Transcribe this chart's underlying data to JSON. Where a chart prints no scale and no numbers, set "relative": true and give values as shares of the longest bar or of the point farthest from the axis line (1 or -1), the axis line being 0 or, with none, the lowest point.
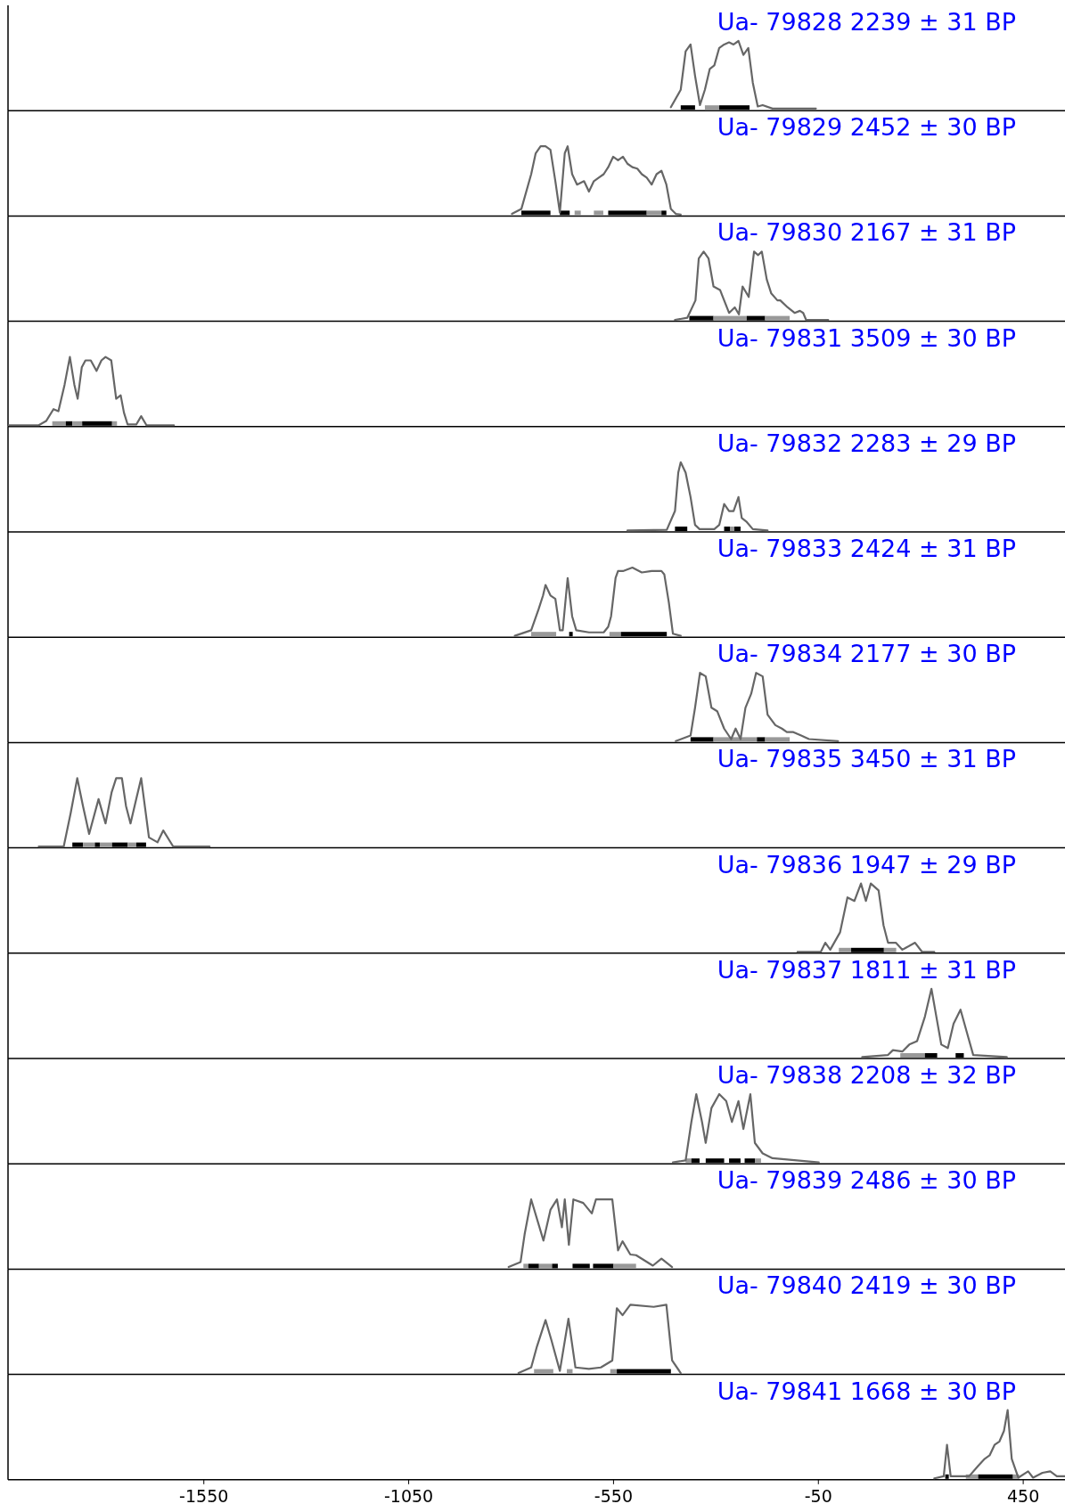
{
  "chart_data": [
    {
      "type": "line",
      "title": "Ua- 79828 2239 ± 31 BP",
      "relative": true,
      "xlim": [
        -2028,
        552
      ],
      "tick_labels": false,
      "color": "#666666",
      "x": [
        -410,
        -386,
        -374,
        -362,
        -351,
        -339,
        -327,
        -315,
        -304,
        -292,
        -280,
        -268,
        -257,
        -245,
        -233,
        -221,
        -210,
        -198,
        -186,
        -162,
        -115,
        -56
      ],
      "values": [
        0.05,
        0.3,
        0.85,
        0.95,
        0.5,
        0.08,
        0.3,
        0.6,
        0.65,
        0.9,
        0.95,
        0.98,
        0.95,
        1.0,
        0.8,
        0.9,
        0.4,
        0.06,
        0.08,
        0.03,
        0.03,
        0.03
      ],
      "bands": [
        {
          "axis": "x",
          "from": -386,
          "to": -351,
          "color": "#000000"
        },
        {
          "axis": "x",
          "from": -327,
          "to": -292,
          "color": "#999999"
        },
        {
          "axis": "x",
          "from": -292,
          "to": -218,
          "color": "#000000"
        }
      ]
    },
    {
      "type": "line",
      "title": "Ua- 79829 2452 ± 30 BP",
      "relative": true,
      "xlim": [
        -2028,
        552
      ],
      "tick_labels": false,
      "color": "#666666",
      "x": [
        -798,
        -775,
        -751,
        -740,
        -728,
        -716,
        -704,
        -692,
        -681,
        -669,
        -662,
        -651,
        -639,
        -622,
        -610,
        -598,
        -586,
        -574,
        -563,
        -551,
        -539,
        -527,
        -516,
        -504,
        -492,
        -481,
        -469,
        -457,
        -445,
        -433,
        -421,
        -410,
        -398,
        -386
      ],
      "values": [
        0.03,
        0.1,
        0.6,
        0.9,
        1.0,
        1.0,
        0.95,
        0.5,
        0.05,
        0.9,
        1.0,
        0.6,
        0.45,
        0.5,
        0.35,
        0.5,
        0.55,
        0.6,
        0.7,
        0.85,
        0.8,
        0.85,
        0.75,
        0.7,
        0.68,
        0.6,
        0.55,
        0.45,
        0.6,
        0.65,
        0.45,
        0.1,
        0.03,
        0.02
      ],
      "bands": [
        {
          "axis": "x",
          "from": -775,
          "to": -704,
          "color": "#000000"
        },
        {
          "axis": "x",
          "from": -681,
          "to": -657,
          "color": "#000000"
        },
        {
          "axis": "x",
          "from": -645,
          "to": -630,
          "color": "#999999"
        },
        {
          "axis": "x",
          "from": -598,
          "to": -575,
          "color": "#999999"
        },
        {
          "axis": "x",
          "from": -563,
          "to": -469,
          "color": "#000000"
        },
        {
          "axis": "x",
          "from": -469,
          "to": -433,
          "color": "#999999"
        },
        {
          "axis": "x",
          "from": -433,
          "to": -421,
          "color": "#000000"
        }
      ]
    },
    {
      "type": "line",
      "title": "Ua- 79830 2167 ± 31 BP",
      "relative": true,
      "xlim": [
        -2028,
        552
      ],
      "tick_labels": false,
      "color": "#666666",
      "x": [
        -400,
        -370,
        -350,
        -342,
        -330,
        -318,
        -306,
        -290,
        -280,
        -268,
        -254,
        -244,
        -235,
        -220,
        -207,
        -197,
        -188,
        -176,
        -165,
        -150,
        -143,
        -125,
        -108,
        -95,
        -87,
        -80,
        -60,
        -26
      ],
      "values": [
        0.02,
        0.05,
        0.3,
        0.9,
        1.0,
        0.9,
        0.5,
        0.45,
        0.3,
        0.12,
        0.2,
        0.1,
        0.5,
        0.35,
        1.0,
        0.95,
        1.0,
        0.6,
        0.4,
        0.3,
        0.3,
        0.2,
        0.12,
        0.15,
        0.12,
        0.02,
        0.02,
        0.02
      ],
      "bands": [
        {
          "axis": "x",
          "from": -365,
          "to": -306,
          "color": "#000000"
        },
        {
          "axis": "x",
          "from": -306,
          "to": -225,
          "color": "#999999"
        },
        {
          "axis": "x",
          "from": -225,
          "to": -180,
          "color": "#000000"
        },
        {
          "axis": "x",
          "from": -180,
          "to": -120,
          "color": "#999999"
        }
      ]
    },
    {
      "type": "line",
      "title": "Ua- 79831 3509 ± 30 BP",
      "relative": true,
      "xlim": [
        -2028,
        552
      ],
      "tick_labels": false,
      "color": "#666666",
      "x": [
        -2026,
        -1953,
        -1935,
        -1917,
        -1905,
        -1890,
        -1877,
        -1866,
        -1858,
        -1848,
        -1839,
        -1826,
        -1812,
        -1800,
        -1790,
        -1776,
        -1764,
        -1753,
        -1745,
        -1736,
        -1715,
        -1703,
        -1690,
        -1623
      ],
      "values": [
        0.02,
        0.02,
        0.08,
        0.25,
        0.22,
        0.6,
        1.0,
        0.6,
        0.4,
        0.85,
        0.95,
        0.95,
        0.8,
        0.95,
        1.0,
        0.95,
        0.4,
        0.45,
        0.2,
        0.03,
        0.03,
        0.15,
        0.02,
        0.02
      ],
      "bands": [
        {
          "axis": "x",
          "from": -1920,
          "to": -1887,
          "color": "#999999"
        },
        {
          "axis": "x",
          "from": -1887,
          "to": -1871,
          "color": "#000000"
        },
        {
          "axis": "x",
          "from": -1871,
          "to": -1847,
          "color": "#999999"
        },
        {
          "axis": "x",
          "from": -1847,
          "to": -1774,
          "color": "#000000"
        },
        {
          "axis": "x",
          "from": -1774,
          "to": -1762,
          "color": "#999999"
        }
      ]
    },
    {
      "type": "line",
      "title": "Ua- 79832 2283 ± 29 BP",
      "relative": true,
      "xlim": [
        -2028,
        552
      ],
      "tick_labels": false,
      "color": "#666666",
      "x": [
        -516,
        -420,
        -400,
        -392,
        -386,
        -374,
        -362,
        -351,
        -340,
        -304,
        -292,
        -280,
        -268,
        -257,
        -245,
        -237,
        -226,
        -210,
        -174
      ],
      "values": [
        0.02,
        0.03,
        0.3,
        0.85,
        1.0,
        0.85,
        0.5,
        0.1,
        0.04,
        0.04,
        0.1,
        0.4,
        0.3,
        0.3,
        0.5,
        0.2,
        0.15,
        0.04,
        0.02
      ],
      "bands": [
        {
          "axis": "x",
          "from": -400,
          "to": -370,
          "color": "#000000"
        },
        {
          "axis": "x",
          "from": -280,
          "to": -265,
          "color": "#000000"
        },
        {
          "axis": "x",
          "from": -265,
          "to": -255,
          "color": "#999999"
        },
        {
          "axis": "x",
          "from": -255,
          "to": -240,
          "color": "#000000"
        }
      ]
    },
    {
      "type": "line",
      "title": "Ua- 79833 2424 ± 31 BP",
      "relative": true,
      "xlim": [
        -2028,
        552
      ],
      "tick_labels": false,
      "color": "#666666",
      "x": [
        -791,
        -751,
        -733,
        -722,
        -716,
        -704,
        -692,
        -681,
        -674,
        -662,
        -651,
        -641,
        -610,
        -574,
        -563,
        -556,
        -545,
        -539,
        -527,
        -504,
        -481,
        -457,
        -433,
        -426,
        -415,
        -405,
        -386
      ],
      "values": [
        0.02,
        0.1,
        0.4,
        0.6,
        0.75,
        0.6,
        0.55,
        0.1,
        0.1,
        0.85,
        0.3,
        0.1,
        0.07,
        0.07,
        0.15,
        0.3,
        0.85,
        0.95,
        0.95,
        1.0,
        0.93,
        0.95,
        0.95,
        0.9,
        0.5,
        0.05,
        0.02
      ],
      "bands": [
        {
          "axis": "x",
          "from": -751,
          "to": -690,
          "color": "#999999"
        },
        {
          "axis": "x",
          "from": -658,
          "to": -650,
          "color": "#000000"
        },
        {
          "axis": "x",
          "from": -560,
          "to": -532,
          "color": "#999999"
        },
        {
          "axis": "x",
          "from": -532,
          "to": -420,
          "color": "#000000"
        }
      ]
    },
    {
      "type": "line",
      "title": "Ua- 79834 2177 ± 30 BP",
      "relative": true,
      "xlim": [
        -2028,
        552
      ],
      "tick_labels": false,
      "color": "#666666",
      "x": [
        -398,
        -362,
        -351,
        -339,
        -325,
        -311,
        -297,
        -280,
        -263,
        -252,
        -240,
        -228,
        -214,
        -202,
        -186,
        -174,
        -155,
        -139,
        -127,
        -111,
        -92,
        -73,
        -2
      ],
      "values": [
        0.02,
        0.1,
        0.5,
        1.0,
        0.95,
        0.5,
        0.45,
        0.2,
        0.05,
        0.2,
        0.05,
        0.5,
        0.7,
        1.0,
        0.95,
        0.4,
        0.25,
        0.2,
        0.15,
        0.15,
        0.1,
        0.05,
        0.02
      ],
      "bands": [
        {
          "axis": "x",
          "from": -362,
          "to": -306,
          "color": "#000000"
        },
        {
          "axis": "x",
          "from": -306,
          "to": -200,
          "color": "#999999"
        },
        {
          "axis": "x",
          "from": -200,
          "to": -180,
          "color": "#000000"
        },
        {
          "axis": "x",
          "from": -180,
          "to": -120,
          "color": "#999999"
        }
      ]
    },
    {
      "type": "line",
      "title": "Ua- 79835 3450 ± 31 BP",
      "relative": true,
      "xlim": [
        -2028,
        552
      ],
      "tick_labels": false,
      "color": "#666666",
      "x": [
        -1953,
        -1892,
        -1875,
        -1859,
        -1845,
        -1830,
        -1807,
        -1790,
        -1775,
        -1764,
        -1750,
        -1740,
        -1729,
        -1715,
        -1703,
        -1684,
        -1663,
        -1649,
        -1625,
        -1536
      ],
      "values": [
        0.02,
        0.02,
        0.5,
        1.0,
        0.6,
        0.2,
        0.7,
        0.35,
        0.8,
        1.0,
        1.0,
        0.6,
        0.35,
        0.7,
        1.0,
        0.15,
        0.08,
        0.25,
        0.02,
        0.02
      ],
      "bands": [
        {
          "axis": "x",
          "from": -1871,
          "to": -1845,
          "color": "#000000"
        },
        {
          "axis": "x",
          "from": -1845,
          "to": -1816,
          "color": "#999999"
        },
        {
          "axis": "x",
          "from": -1816,
          "to": -1804,
          "color": "#000000"
        },
        {
          "axis": "x",
          "from": -1804,
          "to": -1774,
          "color": "#999999"
        },
        {
          "axis": "x",
          "from": -1774,
          "to": -1736,
          "color": "#000000"
        },
        {
          "axis": "x",
          "from": -1736,
          "to": -1715,
          "color": "#999999"
        },
        {
          "axis": "x",
          "from": -1715,
          "to": -1691,
          "color": "#000000"
        }
      ]
    },
    {
      "type": "line",
      "title": "Ua- 79836 1947 ± 29 BP",
      "relative": true,
      "xlim": [
        -2028,
        552
      ],
      "tick_labels": false,
      "color": "#666666",
      "x": [
        -101,
        -44,
        -33,
        -21,
        3,
        21,
        38,
        54,
        66,
        78,
        97,
        109,
        120,
        139,
        155,
        186,
        203,
        233
      ],
      "values": [
        0.02,
        0.02,
        0.15,
        0.05,
        0.3,
        0.8,
        0.75,
        1.0,
        0.75,
        1.0,
        0.9,
        0.4,
        0.15,
        0.15,
        0.05,
        0.15,
        0.02,
        0.02
      ],
      "bands": [
        {
          "axis": "x",
          "from": 0,
          "to": 30,
          "color": "#999999"
        },
        {
          "axis": "x",
          "from": 30,
          "to": 110,
          "color": "#000000"
        },
        {
          "axis": "x",
          "from": 110,
          "to": 140,
          "color": "#999999"
        }
      ]
    },
    {
      "type": "line",
      "title": "Ua- 79837 1811 ± 31 BP",
      "relative": true,
      "xlim": [
        -2028,
        552
      ],
      "tick_labels": false,
      "color": "#666666",
      "x": [
        57,
        120,
        132,
        155,
        172,
        191,
        210,
        226,
        238,
        250,
        266,
        280,
        297,
        316,
        328,
        410
      ],
      "values": [
        0.02,
        0.05,
        0.12,
        0.1,
        0.2,
        0.25,
        0.6,
        1.0,
        0.6,
        0.2,
        0.15,
        0.5,
        0.7,
        0.3,
        0.05,
        0.02
      ],
      "bands": [
        {
          "axis": "x",
          "from": 150,
          "to": 210,
          "color": "#999999"
        },
        {
          "axis": "x",
          "from": 210,
          "to": 240,
          "color": "#000000"
        },
        {
          "axis": "x",
          "from": 285,
          "to": 305,
          "color": "#000000"
        }
      ]
    },
    {
      "type": "line",
      "title": "Ua- 79838 2208 ± 32 BP",
      "relative": true,
      "xlim": [
        -2028,
        552
      ],
      "tick_labels": false,
      "color": "#666666",
      "x": [
        -405,
        -374,
        -360,
        -348,
        -334,
        -325,
        -311,
        -292,
        -275,
        -261,
        -245,
        -233,
        -216,
        -205,
        -186,
        -162,
        -49
      ],
      "values": [
        0.02,
        0.05,
        0.6,
        1.0,
        0.6,
        0.3,
        0.8,
        1.0,
        0.9,
        0.6,
        0.9,
        0.5,
        1.0,
        0.3,
        0.15,
        0.08,
        0.02
      ],
      "bands": [
        {
          "axis": "x",
          "from": -374,
          "to": -360,
          "color": "#999999"
        },
        {
          "axis": "x",
          "from": -360,
          "to": -340,
          "color": "#000000"
        },
        {
          "axis": "x",
          "from": -325,
          "to": -280,
          "color": "#000000"
        },
        {
          "axis": "x",
          "from": -268,
          "to": -240,
          "color": "#000000"
        },
        {
          "axis": "x",
          "from": -230,
          "to": -205,
          "color": "#000000"
        },
        {
          "axis": "x",
          "from": -205,
          "to": -190,
          "color": "#999999"
        }
      ]
    },
    {
      "type": "line",
      "title": "Ua- 79839 2486 ± 30 BP",
      "relative": true,
      "xlim": [
        -2028,
        552
      ],
      "tick_labels": false,
      "color": "#666666",
      "x": [
        -806,
        -777,
        -767,
        -751,
        -721,
        -704,
        -688,
        -676,
        -669,
        -659,
        -648,
        -624,
        -603,
        -593,
        -553,
        -539,
        -528,
        -509,
        -495,
        -454,
        -433,
        -407
      ],
      "values": [
        0.03,
        0.1,
        0.5,
        1.0,
        0.41,
        0.85,
        1.0,
        0.6,
        1.0,
        0.35,
        1.0,
        0.95,
        0.8,
        1.0,
        1.0,
        0.27,
        0.4,
        0.21,
        0.2,
        0.05,
        0.15,
        0.03
      ],
      "bands": [
        {
          "axis": "x",
          "from": -770,
          "to": -758,
          "color": "#999999"
        },
        {
          "axis": "x",
          "from": -758,
          "to": -732,
          "color": "#000000"
        },
        {
          "axis": "x",
          "from": -732,
          "to": -700,
          "color": "#999999"
        },
        {
          "axis": "x",
          "from": -700,
          "to": -686,
          "color": "#000000"
        },
        {
          "axis": "x",
          "from": -650,
          "to": -608,
          "color": "#000000"
        },
        {
          "axis": "x",
          "from": -600,
          "to": -550,
          "color": "#000000"
        },
        {
          "axis": "x",
          "from": -550,
          "to": -495,
          "color": "#999999"
        }
      ]
    },
    {
      "type": "line",
      "title": "Ua- 79840 2419 ± 30 BP",
      "relative": true,
      "xlim": [
        -2028,
        552
      ],
      "tick_labels": false,
      "color": "#666666",
      "x": [
        -782,
        -751,
        -737,
        -716,
        -702,
        -681,
        -660,
        -643,
        -610,
        -581,
        -553,
        -542,
        -528,
        -509,
        -452,
        -421,
        -407,
        -386
      ],
      "values": [
        0.02,
        0.1,
        0.4,
        0.78,
        0.5,
        0.05,
        0.8,
        0.1,
        0.08,
        0.1,
        0.2,
        0.95,
        0.85,
        1.0,
        0.97,
        1.0,
        0.2,
        0.02
      ],
      "bands": [
        {
          "axis": "x",
          "from": -744,
          "to": -697,
          "color": "#999999"
        },
        {
          "axis": "x",
          "from": -664,
          "to": -650,
          "color": "#999999"
        },
        {
          "axis": "x",
          "from": -558,
          "to": -542,
          "color": "#999999"
        },
        {
          "axis": "x",
          "from": -542,
          "to": -410,
          "color": "#000000"
        }
      ]
    },
    {
      "type": "line",
      "title": "Ua- 79841 1668 ± 30 BP",
      "relative": true,
      "xlim": [
        -2028,
        552
      ],
      "xticks": [
        -1550,
        -1050,
        -550,
        -50,
        450
      ],
      "tick_labels": "x",
      "color": "#666666",
      "x": [
        233,
        256,
        264,
        273,
        318,
        340,
        356,
        368,
        380,
        392,
        403,
        412,
        422,
        438,
        462,
        474,
        497,
        516,
        532,
        552
      ],
      "values": [
        0.02,
        0.05,
        0.5,
        0.05,
        0.05,
        0.2,
        0.3,
        0.35,
        0.5,
        0.55,
        0.7,
        1.0,
        0.3,
        0.03,
        0.12,
        0.03,
        0.1,
        0.12,
        0.05,
        0.05
      ],
      "bands": [
        {
          "axis": "x",
          "from": 262,
          "to": 266,
          "color": "#000000"
        },
        {
          "axis": "x",
          "from": 310,
          "to": 340,
          "color": "#999999"
        },
        {
          "axis": "x",
          "from": 340,
          "to": 425,
          "color": "#000000"
        },
        {
          "axis": "x",
          "from": 425,
          "to": 440,
          "color": "#999999"
        }
      ]
    }
  ]
}
